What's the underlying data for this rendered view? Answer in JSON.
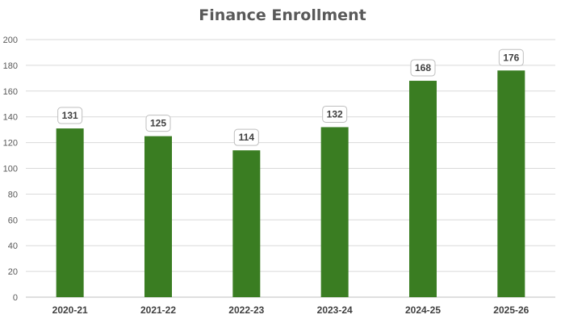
{
  "chart_data": {
    "type": "bar",
    "title": "Finance Enrollment",
    "categories": [
      "2020-21",
      "2021-22",
      "2022-23",
      "2023-24",
      "2024-25",
      "2025-26"
    ],
    "values": [
      131,
      125,
      114,
      132,
      168,
      176
    ],
    "xlabel": "",
    "ylabel": "",
    "ylim": [
      0,
      200
    ],
    "yticks": [
      0,
      20,
      40,
      60,
      80,
      100,
      120,
      140,
      160,
      180,
      200
    ],
    "grid": true,
    "legend": "none",
    "data_labels": true,
    "bar_color": "#3a7d22"
  }
}
